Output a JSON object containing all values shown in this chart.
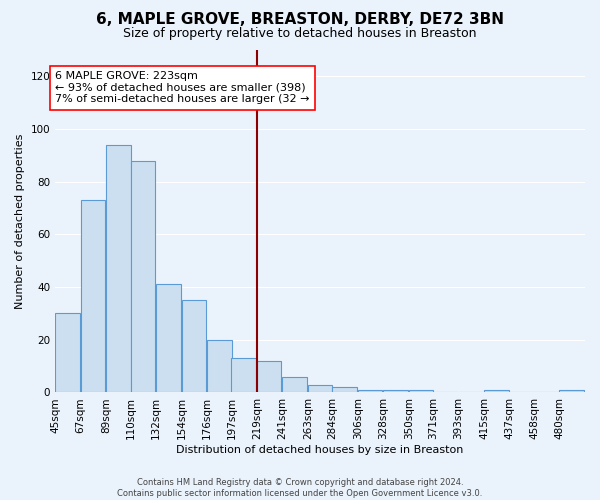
{
  "title": "6, MAPLE GROVE, BREASTON, DERBY, DE72 3BN",
  "subtitle": "Size of property relative to detached houses in Breaston",
  "xlabel": "Distribution of detached houses by size in Breaston",
  "ylabel": "Number of detached properties",
  "bar_color": "#ccdff0",
  "bar_edge_color": "#5b9bd5",
  "vline_color": "#8b0000",
  "vline_x": 219,
  "categories": [
    "45sqm",
    "67sqm",
    "89sqm",
    "110sqm",
    "132sqm",
    "154sqm",
    "176sqm",
    "197sqm",
    "219sqm",
    "241sqm",
    "263sqm",
    "284sqm",
    "306sqm",
    "328sqm",
    "350sqm",
    "371sqm",
    "393sqm",
    "415sqm",
    "437sqm",
    "458sqm",
    "480sqm"
  ],
  "bin_left_edges": [
    45,
    67,
    89,
    110,
    132,
    154,
    176,
    197,
    219,
    241,
    263,
    284,
    306,
    328,
    350,
    371,
    393,
    415,
    437,
    458,
    480
  ],
  "bar_widths": [
    22,
    22,
    21,
    22,
    22,
    22,
    21,
    22,
    22,
    22,
    21,
    22,
    22,
    22,
    21,
    22,
    22,
    22,
    21,
    22,
    22
  ],
  "values": [
    30,
    73,
    94,
    88,
    41,
    35,
    20,
    13,
    12,
    6,
    3,
    2,
    1,
    1,
    1,
    0,
    0,
    1,
    0,
    0,
    1
  ],
  "ylim": [
    0,
    130
  ],
  "yticks": [
    0,
    20,
    40,
    60,
    80,
    100,
    120
  ],
  "annotation_line1": "6 MAPLE GROVE: 223sqm",
  "annotation_line2": "← 93% of detached houses are smaller (398)",
  "annotation_line3": "7% of semi-detached houses are larger (32 →",
  "footer_line1": "Contains HM Land Registry data © Crown copyright and database right 2024.",
  "footer_line2": "Contains public sector information licensed under the Open Government Licence v3.0.",
  "bg_color": "#eaf2fb",
  "plot_bg_color": "#eaf2fb",
  "grid_color": "#ffffff",
  "title_fontsize": 11,
  "subtitle_fontsize": 9,
  "axis_label_fontsize": 8,
  "tick_fontsize": 7.5,
  "annotation_fontsize": 8,
  "footer_fontsize": 6
}
